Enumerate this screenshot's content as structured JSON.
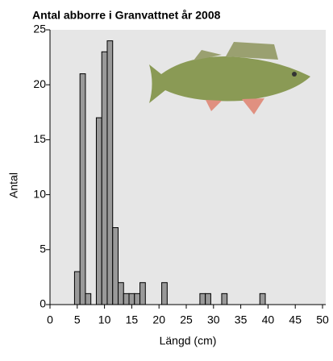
{
  "chart_data": {
    "type": "histogram",
    "title": "Antal abborre i Granvattnet år 2008",
    "x_label": "Längd (cm)",
    "y_label": "Antal",
    "bins": [
      4.5,
      5.5,
      6.5,
      7.5,
      8.5,
      9.5,
      10.5,
      11.5,
      12.5,
      13.5,
      14.5,
      15.5,
      16.5,
      17.5,
      18.5,
      19.5,
      20.5,
      21.5,
      22.5,
      23.5,
      24.5,
      25.5,
      26.5,
      27.5,
      28.5,
      29.5,
      30.5,
      31.5,
      32.5,
      33.5,
      34.5,
      35.5,
      36.5,
      37.5,
      38.5,
      39.5
    ],
    "counts": [
      3,
      21,
      1,
      0,
      17,
      23,
      24,
      7,
      2,
      1,
      1,
      1,
      2,
      0,
      0,
      0,
      2,
      0,
      0,
      0,
      0,
      0,
      0,
      1,
      1,
      0,
      0,
      1,
      0,
      0,
      0,
      0,
      0,
      0,
      1
    ],
    "color": "#999999",
    "xlim": [
      0,
      50
    ],
    "xticks": [
      0,
      5,
      10,
      15,
      20,
      25,
      30,
      35,
      40,
      45,
      50
    ],
    "ylim": [
      0,
      25
    ],
    "yticks": [
      0,
      5,
      10,
      15,
      20,
      25
    ]
  }
}
